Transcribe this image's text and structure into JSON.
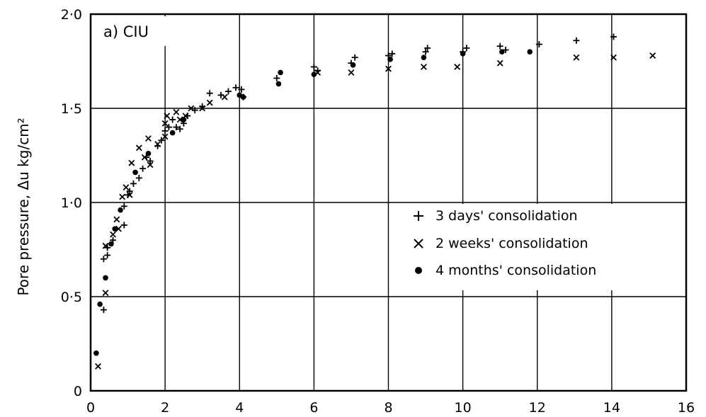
{
  "chart_data": {
    "type": "scatter",
    "panel_label": "a)  CIU",
    "ylabel": "Pore pressure, Δu kg/cm²",
    "xlabel": "",
    "xlim": [
      0,
      16
    ],
    "ylim": [
      0,
      2.0
    ],
    "x_ticks": [
      0,
      2,
      4,
      6,
      8,
      10,
      12,
      14,
      16
    ],
    "x_tick_labels": [
      "0",
      "2",
      "4",
      "6",
      "8",
      "10",
      "12",
      "14",
      "16"
    ],
    "y_ticks": [
      0,
      0.5,
      1.0,
      1.5,
      2.0
    ],
    "y_tick_labels": [
      "0",
      "0·5",
      "1·0",
      "1·5",
      "2·0"
    ],
    "grid": true,
    "legend_position": "center-right",
    "series": [
      {
        "name": "3 days' consolidation",
        "marker": "plus",
        "points": [
          [
            0.35,
            0.43
          ],
          [
            0.35,
            0.7
          ],
          [
            0.45,
            0.72
          ],
          [
            0.45,
            0.76
          ],
          [
            0.6,
            0.8
          ],
          [
            0.9,
            0.88
          ],
          [
            0.9,
            0.98
          ],
          [
            1.0,
            1.04
          ],
          [
            1.05,
            1.06
          ],
          [
            1.15,
            1.1
          ],
          [
            1.3,
            1.13
          ],
          [
            1.4,
            1.18
          ],
          [
            1.5,
            1.24
          ],
          [
            1.6,
            1.22
          ],
          [
            1.8,
            1.3
          ],
          [
            1.9,
            1.33
          ],
          [
            2.0,
            1.38
          ],
          [
            2.1,
            1.4
          ],
          [
            2.2,
            1.44
          ],
          [
            2.3,
            1.4
          ],
          [
            2.4,
            1.39
          ],
          [
            2.5,
            1.42
          ],
          [
            2.6,
            1.46
          ],
          [
            2.8,
            1.49
          ],
          [
            3.0,
            1.51
          ],
          [
            3.2,
            1.58
          ],
          [
            3.5,
            1.57
          ],
          [
            3.7,
            1.59
          ],
          [
            3.9,
            1.61
          ],
          [
            4.05,
            1.6
          ],
          [
            4.1,
            1.56
          ],
          [
            5.0,
            1.66
          ],
          [
            6.0,
            1.72
          ],
          [
            6.1,
            1.7
          ],
          [
            7.0,
            1.74
          ],
          [
            7.1,
            1.77
          ],
          [
            8.0,
            1.78
          ],
          [
            8.1,
            1.79
          ],
          [
            9.0,
            1.8
          ],
          [
            9.05,
            1.82
          ],
          [
            10.0,
            1.8
          ],
          [
            10.1,
            1.82
          ],
          [
            11.0,
            1.83
          ],
          [
            11.15,
            1.81
          ],
          [
            12.05,
            1.84
          ],
          [
            13.05,
            1.86
          ],
          [
            14.05,
            1.88
          ]
        ]
      },
      {
        "name": "2 weeks' consolidation",
        "marker": "cross",
        "points": [
          [
            0.2,
            0.13
          ],
          [
            0.4,
            0.52
          ],
          [
            0.4,
            0.77
          ],
          [
            0.6,
            0.83
          ],
          [
            0.7,
            0.91
          ],
          [
            0.75,
            0.86
          ],
          [
            0.85,
            1.03
          ],
          [
            0.95,
            1.08
          ],
          [
            1.05,
            1.04
          ],
          [
            1.1,
            1.21
          ],
          [
            1.3,
            1.29
          ],
          [
            1.45,
            1.24
          ],
          [
            1.55,
            1.34
          ],
          [
            1.6,
            1.2
          ],
          [
            1.8,
            1.31
          ],
          [
            2.0,
            1.35
          ],
          [
            2.0,
            1.42
          ],
          [
            2.05,
            1.46
          ],
          [
            2.3,
            1.48
          ],
          [
            2.4,
            1.44
          ],
          [
            2.55,
            1.46
          ],
          [
            2.7,
            1.5
          ],
          [
            3.0,
            1.5
          ],
          [
            3.2,
            1.53
          ],
          [
            3.6,
            1.56
          ],
          [
            6.1,
            1.69
          ],
          [
            7.0,
            1.69
          ],
          [
            8.0,
            1.71
          ],
          [
            8.95,
            1.72
          ],
          [
            9.85,
            1.72
          ],
          [
            11.0,
            1.74
          ],
          [
            13.05,
            1.77
          ],
          [
            14.05,
            1.77
          ],
          [
            15.1,
            1.78
          ]
        ]
      },
      {
        "name": "4 months' consolidation",
        "marker": "dot",
        "points": [
          [
            0.15,
            0.2
          ],
          [
            0.25,
            0.46
          ],
          [
            0.4,
            0.6
          ],
          [
            0.55,
            0.78
          ],
          [
            0.65,
            0.86
          ],
          [
            0.8,
            0.96
          ],
          [
            1.2,
            1.16
          ],
          [
            1.55,
            1.26
          ],
          [
            2.2,
            1.37
          ],
          [
            2.5,
            1.44
          ],
          [
            4.0,
            1.57
          ],
          [
            4.1,
            1.56
          ],
          [
            5.05,
            1.63
          ],
          [
            5.1,
            1.69
          ],
          [
            6.0,
            1.68
          ],
          [
            7.05,
            1.73
          ],
          [
            8.05,
            1.76
          ],
          [
            8.95,
            1.77
          ],
          [
            10.0,
            1.79
          ],
          [
            11.05,
            1.8
          ],
          [
            11.8,
            1.8
          ]
        ]
      }
    ]
  }
}
